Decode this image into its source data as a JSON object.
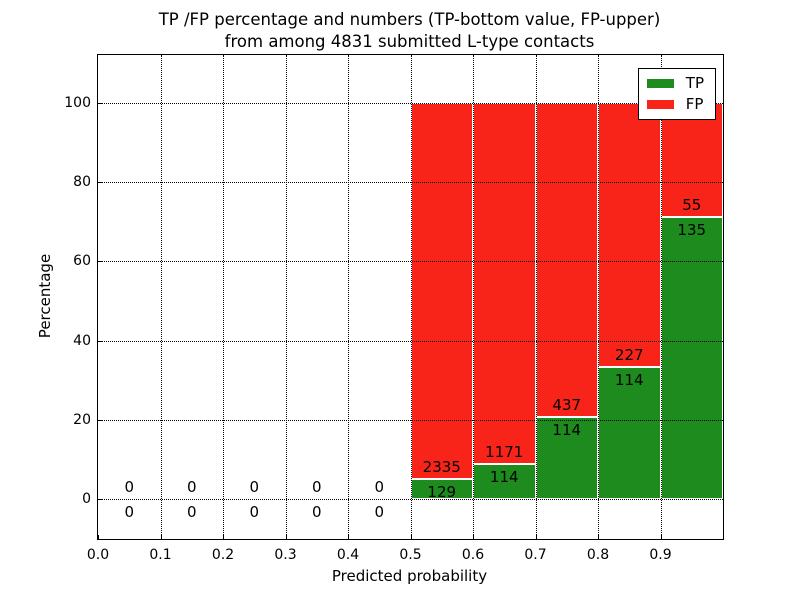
{
  "figure": {
    "title_line1": "TP /FP percentage and numbers (TP-bottom value, FP-upper)",
    "title_line2": "from among 4831 submitted L-type contacts"
  },
  "chart_data": {
    "type": "bar",
    "stacked": true,
    "normalized_per_bin_to_100pct": true,
    "title": "TP /FP percentage and numbers (TP-bottom value, FP-upper) from among 4831 submitted L-type contacts",
    "xlabel": "Predicted probability",
    "ylabel": "Percentage",
    "xlim": [
      0.0,
      1.0
    ],
    "ylim": [
      -10,
      112
    ],
    "xticks": [
      "0.0",
      "0.1",
      "0.2",
      "0.3",
      "0.4",
      "0.5",
      "0.6",
      "0.7",
      "0.8",
      "0.9"
    ],
    "yticks": [
      0,
      20,
      40,
      60,
      80,
      100
    ],
    "grid_style": "dotted",
    "bin_width": 0.1,
    "bin_starts": [
      0.0,
      0.1,
      0.2,
      0.3,
      0.4,
      0.5,
      0.6,
      0.7,
      0.8,
      0.9
    ],
    "series": [
      {
        "name": "TP",
        "color": "#1e8b1e",
        "counts": [
          0,
          0,
          0,
          0,
          0,
          129,
          114,
          114,
          114,
          135
        ]
      },
      {
        "name": "FP",
        "color": "#f82419",
        "counts": [
          0,
          0,
          0,
          0,
          0,
          2335,
          1171,
          437,
          227,
          55
        ]
      }
    ],
    "tp_percent_by_bin": [
      null,
      null,
      null,
      null,
      null,
      5.24,
      8.87,
      20.69,
      33.43,
      71.05
    ],
    "annotation_rule": "FP count above TP/FP boundary, TP count below",
    "total_submitted": 4831,
    "legend": {
      "position": "upper-right",
      "entries": [
        {
          "label": "TP",
          "color": "#1e8b1e"
        },
        {
          "label": "FP",
          "color": "#f82419"
        }
      ]
    }
  }
}
